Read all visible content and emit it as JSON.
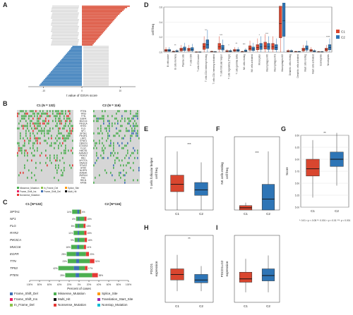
{
  "panels": {
    "A": "A",
    "B": "B",
    "C": "C",
    "D": "D",
    "E": "E",
    "F": "F",
    "G": "G",
    "H": "H",
    "I": "I"
  },
  "colors": {
    "c1": "#d9462f",
    "c2": "#2e75b6",
    "miss": "#4caf50",
    "frame_del": "#3f6fb5",
    "frame_ins": "#e91e63",
    "nonsense": "#e53935",
    "splice": "#ff9800",
    "multi": "#111111",
    "trans": "#9c27b0",
    "inframe": "#8bc34a",
    "nonstop": "#00bcd4"
  },
  "chart_data": [
    {
      "panel": "A",
      "type": "bar",
      "xlabel": "t value of GSVA score",
      "x_ticks": [
        "-10",
        "0",
        "10"
      ],
      "xlim": [
        -14,
        14
      ],
      "pos_values": [
        12.5,
        11.8,
        11.2,
        10.9,
        10.5,
        10.1,
        9.8,
        9.4,
        9.1,
        8.8,
        8.5,
        8.2,
        7.9,
        7.6,
        7.3,
        7.0,
        6.7,
        6.4,
        6.1,
        5.8,
        5.5,
        5.2,
        4.9,
        4.6,
        4.3,
        4.0,
        3.7,
        3.4,
        3.1,
        2.8
      ],
      "neg_values": [
        -2.5,
        -2.8,
        -3.0,
        -3.3,
        -3.6,
        -3.9,
        -4.2,
        -4.5,
        -4.8,
        -5.1,
        -5.4,
        -5.7,
        -6.0,
        -6.3,
        -6.6,
        -6.9,
        -7.2,
        -7.5,
        -7.8,
        -8.1,
        -8.4,
        -8.7,
        -9.0,
        -9.3,
        -9.6,
        -9.9,
        -10.2,
        -10.5,
        -10.8,
        -11.1
      ]
    },
    {
      "panel": "C",
      "type": "bar",
      "xlabel": "Percent of cases",
      "c1_header": "C1 [N=132]",
      "c2_header": "C2 [N=116]",
      "genes": [
        "SPTA1",
        "NF1",
        "FLG",
        "RYR2",
        "PIK3CA",
        "MUC16",
        "EGFR",
        "TTN",
        "TP53",
        "PTEN"
      ],
      "c1_pct": [
        14,
        6,
        8,
        11,
        9,
        16,
        25,
        23,
        42,
        28
      ],
      "c2_pct": [
        4,
        15,
        13,
        15,
        16,
        14,
        20,
        31,
        17,
        38
      ],
      "c1_labels": [
        "14%",
        "6%",
        "8%",
        "11%",
        "9%",
        "16%",
        "25%",
        "23%",
        "42%",
        "28%"
      ],
      "c2_labels": [
        "4%",
        "15%",
        "13%",
        "15%",
        "16%",
        "14%",
        "20%",
        "31%",
        "17%",
        "38%"
      ],
      "x_ticks": [
        "100%",
        "80%",
        "60%",
        "40%",
        "20%",
        "0%",
        "20%",
        "40%",
        "60%",
        "80%",
        "100%"
      ]
    },
    {
      "panel": "D",
      "type": "box",
      "ylabel": "cell freq",
      "ylim": [
        0,
        0.6
      ],
      "y_ticks": [
        "0.0",
        "0.2",
        "0.4",
        "0.6"
      ],
      "legend": [
        "C1",
        "C2"
      ],
      "categories": [
        "B cells naive",
        "B cells memory",
        "Plasma cells",
        "T cells CD8",
        "T cells CD4 naive",
        "T cells CD4 memory resting",
        "T cells CD4 memory activated",
        "T cells follicular helper",
        "T cells regulatory (Tregs)",
        "T cells gamma delta",
        "NK cells resting",
        "NK cells activated",
        "Monocytes",
        "Macrophages M0",
        "Macrophages M1",
        "Macrophages M2",
        "Dendritic cells resting",
        "Dendritic cells activated",
        "Mast cells resting",
        "Mast cells activated",
        "Eosinophils",
        "Neutrophils"
      ],
      "c1_median": [
        0.02,
        0.005,
        0.03,
        0.03,
        0.0,
        0.07,
        0.004,
        0.07,
        0.01,
        0.02,
        0.003,
        0.05,
        0.06,
        0.08,
        0.07,
        0.38,
        0.01,
        0.003,
        0.03,
        0.02,
        0.002,
        0.03
      ],
      "c2_median": [
        0.02,
        0.01,
        0.04,
        0.035,
        0.0,
        0.1,
        0.002,
        0.055,
        0.01,
        0.02,
        0.015,
        0.04,
        0.07,
        0.07,
        0.06,
        0.42,
        0.01,
        0.003,
        0.05,
        0.01,
        0.002,
        0.06
      ],
      "significance": [
        "",
        "**",
        "",
        "",
        "",
        "**",
        "",
        "***",
        "*",
        "**",
        "***",
        "",
        "*",
        "***",
        "",
        "",
        "",
        "",
        "",
        "",
        "",
        "****"
      ]
    },
    {
      "panel": "E",
      "type": "box",
      "ylabel": "T cells follicular helper cell freq",
      "groups": [
        "C1",
        "C2"
      ],
      "median": [
        0.07,
        0.055
      ],
      "q1": [
        0.05,
        0.04
      ],
      "q3": [
        0.095,
        0.075
      ],
      "min": [
        0.0,
        0.0
      ],
      "max": [
        0.16,
        0.13
      ],
      "ylim": [
        0,
        0.2
      ],
      "sig": "***"
    },
    {
      "panel": "F",
      "type": "box",
      "ylabel": "NK cells resting cell freq",
      "groups": [
        "C1",
        "C2"
      ],
      "median": [
        0.003,
        0.015
      ],
      "q1": [
        0.0,
        0.0
      ],
      "q3": [
        0.006,
        0.035
      ],
      "min": [
        0.0,
        0.0
      ],
      "max": [
        0.01,
        0.08
      ],
      "ylim": [
        0,
        0.1
      ],
      "sig": "***"
    },
    {
      "panel": "G",
      "type": "box",
      "ylabel": "Score",
      "groups": [
        "C1",
        "C2"
      ],
      "median": [
        5.8,
        6.0
      ],
      "q1": [
        5.65,
        5.85
      ],
      "q3": [
        6.0,
        6.15
      ],
      "min": [
        5.2,
        5.45
      ],
      "max": [
        6.4,
        6.55
      ],
      "ylim": [
        5.0,
        6.5
      ],
      "y_ticks": [
        "5.00",
        "5.25",
        "5.50",
        "5.75",
        "6.00",
        "6.25",
        "6.50"
      ],
      "sig": "**",
      "footnote": "*: 0.01 < p < 0.05  **: 0.001 < p < 0.01  ***: p < 0.001"
    },
    {
      "panel": "H",
      "type": "box",
      "ylabel": "PDCD1 expression",
      "groups": [
        "C1",
        "C2"
      ],
      "median": [
        4.3,
        4.2
      ],
      "q1": [
        4.2,
        4.15
      ],
      "q3": [
        4.4,
        4.3
      ],
      "min": [
        4.0,
        4.0
      ],
      "max": [
        4.65,
        4.45
      ],
      "ylim": [
        3.8,
        5.0
      ],
      "sig": "**"
    },
    {
      "panel": "I",
      "type": "box",
      "ylabel": "PDCD1LG2 expression",
      "groups": [
        "C1",
        "C2"
      ],
      "median": [
        3.75,
        3.8
      ],
      "q1": [
        3.7,
        3.72
      ],
      "q3": [
        3.85,
        3.9
      ],
      "min": [
        3.55,
        3.55
      ],
      "max": [
        4.05,
        4.1
      ],
      "ylim": [
        3.4,
        4.4
      ],
      "sig": ""
    }
  ],
  "oncoplot": {
    "c1_header": "C1 (N = 132)",
    "c2_header": "C2 (N = 116)",
    "genes": [
      "PTEN",
      "TP53",
      "TTN",
      "EGFR",
      "MUC16",
      "PIK3CA",
      "RYR2",
      "FLG",
      "NF1",
      "SPTA1",
      "PIK3R1",
      "LRP2",
      "SYNE1",
      "OBSCN",
      "COL6A3",
      "FLG2",
      "HMCN1",
      "AHNAK2",
      "PKHD1",
      "RB1",
      "MYO7A",
      "DNAH3",
      "STAG2",
      "ATRX",
      "NLRP5",
      "AHNAK",
      "ZNF644",
      "TNC",
      "RELN",
      "APOB"
    ],
    "legend": [
      "Missense_Mutation",
      "In_Frame_Del",
      "Splice_Site",
      "Frame_Shift_Ins",
      "Frame_Shift_Del",
      "Multi_Hit",
      "Nonsense_Mutation"
    ]
  },
  "legend_c": [
    "Frame_Shift_Del",
    "Missense_Mutation",
    "Splice_Site",
    "Frame_Shift_Ins",
    "Multi_Hit",
    "Translation_Start_Site",
    "In_Frame_Del",
    "Nonsense_Mutation",
    "Nonstop_Mutation"
  ]
}
